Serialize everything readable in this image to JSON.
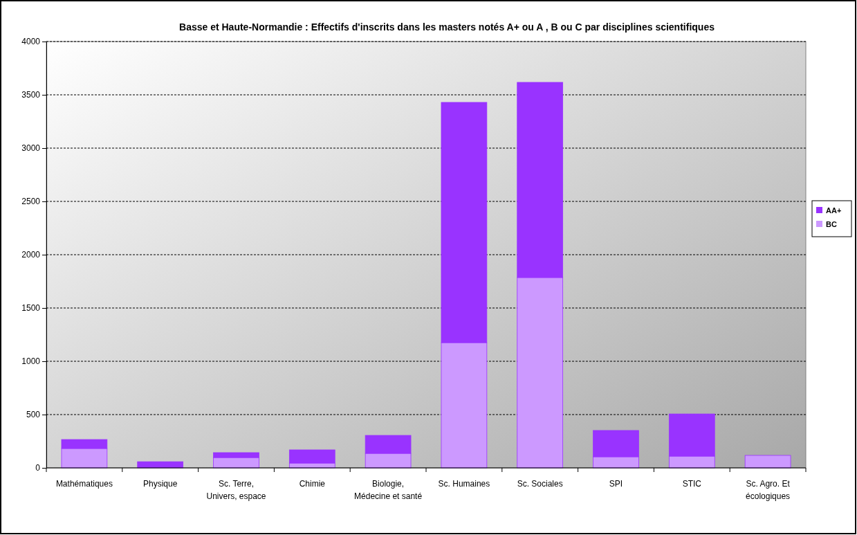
{
  "chart_data": {
    "type": "bar",
    "title": "Basse et Haute-Normandie : Effectifs d'inscrits dans les masters notés A+ ou A , B ou C par disciplines scientifiques",
    "categories": [
      "Mathématiques",
      "Physique",
      "Sc. Terre, Univers, espace",
      "Chimie",
      "Biologie, Médecine et santé",
      "Sc. Humaines",
      "Sc. Sociales",
      "SPI",
      "STIC",
      "Sc. Agro. Et écologiques"
    ],
    "stacked": true,
    "series": [
      {
        "name": "BC",
        "color": "#cc99ff",
        "values": [
          182,
          0,
          97,
          45,
          136,
          1175,
          1786,
          104,
          110,
          117
        ]
      },
      {
        "name": "AA+",
        "color": "#9933ff",
        "values": [
          84,
          58,
          46,
          124,
          169,
          2254,
          1831,
          247,
          396,
          0
        ]
      }
    ],
    "ylim": [
      0,
      4000
    ],
    "yticks": [
      0,
      500,
      1000,
      1500,
      2000,
      2500,
      3000,
      3500,
      4000
    ],
    "grid": "y",
    "legend": "right"
  }
}
